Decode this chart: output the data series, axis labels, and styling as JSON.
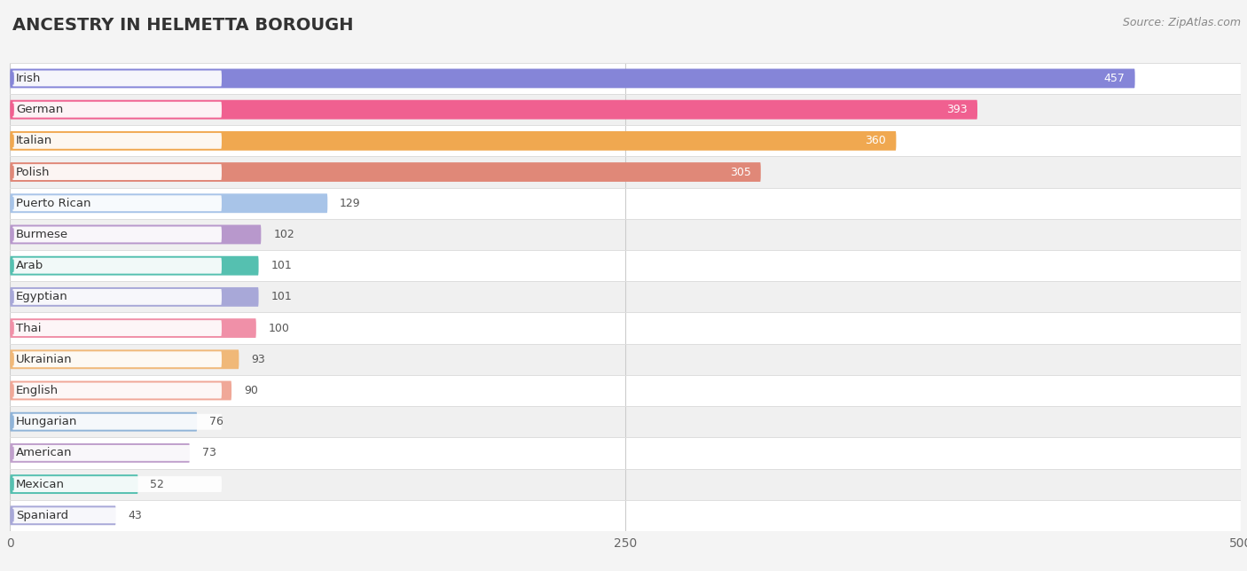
{
  "title": "ANCESTRY IN HELMETTA BOROUGH",
  "source": "Source: ZipAtlas.com",
  "categories": [
    "Irish",
    "German",
    "Italian",
    "Polish",
    "Puerto Rican",
    "Burmese",
    "Arab",
    "Egyptian",
    "Thai",
    "Ukrainian",
    "English",
    "Hungarian",
    "American",
    "Mexican",
    "Spaniard"
  ],
  "values": [
    457,
    393,
    360,
    305,
    129,
    102,
    101,
    101,
    100,
    93,
    90,
    76,
    73,
    52,
    43
  ],
  "colors": [
    "#8585d8",
    "#f06090",
    "#f0a850",
    "#e08878",
    "#a8c4e8",
    "#b898cc",
    "#55c0b0",
    "#a8a8d8",
    "#f090a8",
    "#f0b878",
    "#f0a898",
    "#90b4d8",
    "#c0a0cc",
    "#55c0b0",
    "#a8a8d8"
  ],
  "xlim": [
    0,
    500
  ],
  "xticks": [
    0,
    250,
    500
  ],
  "background_color": "#f4f4f4",
  "row_colors": [
    "#ffffff",
    "#f0f0f0"
  ],
  "title_fontsize": 14,
  "label_fontsize": 9.5,
  "value_fontsize": 9
}
